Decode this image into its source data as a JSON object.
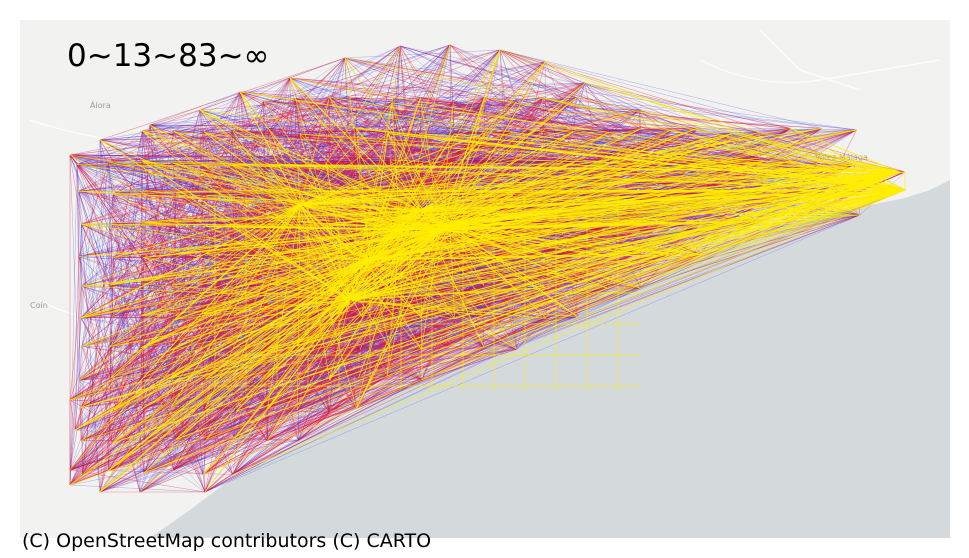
{
  "title": "0~13~83~∞",
  "attribution": "(C) OpenStreetMap contributors (C) CARTO",
  "place_labels": [
    {
      "name": "Álora"
    },
    {
      "name": "Vélez-Málaga"
    },
    {
      "name": "Coín"
    }
  ],
  "colors": {
    "land": "#f2f2f0",
    "sea": "#d4dadc",
    "low": "#2b1fe0",
    "mid": "#e8112d",
    "high": "#ffee00"
  },
  "legend_thresholds": [
    "0",
    "13",
    "83",
    "∞"
  ]
}
